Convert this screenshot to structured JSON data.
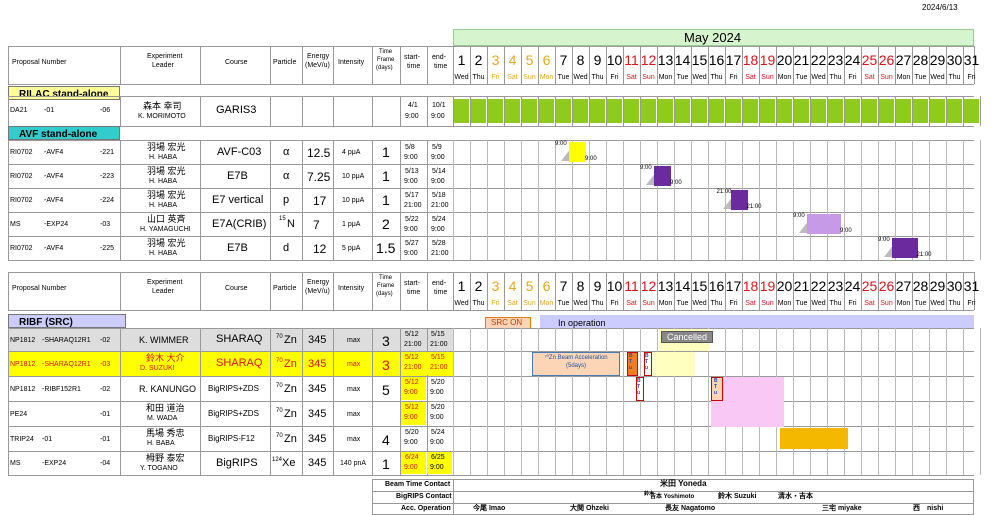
{
  "date": "2024/6/13",
  "month_title": "May 2024",
  "headers": {
    "proposal": "Proposal Number",
    "leader_1": "Experiment",
    "leader_2": "Leader",
    "course": "Course",
    "particle": "Particle",
    "energy_1": "Energy",
    "energy_2": "(MeV/u)",
    "intensity": "Intensity",
    "time_1": "Time",
    "time_2": "Frame",
    "time_3": "(days)",
    "start_1": "start-",
    "start_2": "time",
    "end_1": "end-",
    "end_2": "time"
  },
  "days": [
    "1",
    "2",
    "3",
    "4",
    "5",
    "6",
    "7",
    "8",
    "9",
    "10",
    "11",
    "12",
    "13",
    "14",
    "15",
    "16",
    "17",
    "18",
    "19",
    "20",
    "21",
    "22",
    "23",
    "24",
    "25",
    "26",
    "27",
    "28",
    "29",
    "30",
    "31"
  ],
  "weekdays": [
    "Wed",
    "Thu",
    "Fri",
    "Sat",
    "Sun",
    "Mon",
    "Tue",
    "Wed",
    "Thu",
    "Fri",
    "Sat",
    "Sun",
    "Mon",
    "Tue",
    "Wed",
    "Thu",
    "Fri",
    "Sat",
    "Sun",
    "Mon",
    "Tue",
    "Wed",
    "Thu",
    "Fri",
    "Sat",
    "Sun",
    "Mon",
    "Tue",
    "Wed",
    "Thu",
    "Fri"
  ],
  "colors": {
    "holiday": "#e6a817",
    "weekend": "#d9141b",
    "green": "#8fcb1d",
    "purple": "#6b2a9e",
    "light_purple": "#c79ae8",
    "yellow": "#ffff00",
    "orange": "#f4b800"
  },
  "sections": {
    "rilac": "RILAC stand-alone",
    "avf": "AVF stand-alone",
    "ribf": "RIBF (SRC)"
  },
  "rilac_rows": [
    {
      "id": "DA21",
      "a": "-01",
      "b": "-06",
      "leader_jp": "森本 幸司",
      "leader_en": "K. MORIMOTO",
      "course": "GARIS3",
      "start": "4/1",
      "start_t": "9:00",
      "end": "10/1",
      "end_t": "9:00"
    }
  ],
  "avf_rows": [
    {
      "id": "RI0702",
      "a": "-AVF4",
      "b": "-221",
      "leader_jp": "羽場 宏光",
      "leader_en": "H. HABA",
      "course": "AVF-C03",
      "particle": "α",
      "energy": "12.5",
      "intensity": "4 pμA",
      "days": "1",
      "start": "5/8",
      "start_t": "9:00",
      "end": "5/9",
      "end_t": "9:00",
      "l1": "9:00",
      "l2": "9:00"
    },
    {
      "id": "RI0702",
      "a": "-AVF4",
      "b": "-223",
      "leader_jp": "羽場 宏光",
      "leader_en": "H. HABA",
      "course": "E7B",
      "particle": "α",
      "energy": "7.25",
      "intensity": "10 pμA",
      "days": "1",
      "start": "5/13",
      "start_t": "9:00",
      "end": "5/14",
      "end_t": "9:00",
      "l1": "9:00",
      "l2": "9:00"
    },
    {
      "id": "RI0702",
      "a": "-AVF4",
      "b": "-224",
      "leader_jp": "羽場 宏光",
      "leader_en": "H. HABA",
      "course": "E7 vertical",
      "particle": "p",
      "energy": "17",
      "intensity": "10 pμA",
      "days": "1",
      "start": "5/17",
      "start_t": "21:00",
      "end": "5/18",
      "end_t": "21:00",
      "l1": "21:00",
      "l2": "21:00"
    },
    {
      "id": "MS",
      "a": "-EXP24",
      "b": "-03",
      "leader_jp": "山口 英斉",
      "leader_en": "H. YAMAGUCHI",
      "course": "E7A(CRIB)",
      "particle_sup": "15",
      "particle": "N",
      "energy": "7",
      "intensity": "1 pμA",
      "days": "2",
      "start": "5/22",
      "start_t": "9:00",
      "end": "5/24",
      "end_t": "9:00",
      "l1": "9:00",
      "l2": "9:00"
    },
    {
      "id": "RI0702",
      "a": "-AVF4",
      "b": "-225",
      "leader_jp": "羽場 宏光",
      "leader_en": "H. HABA",
      "course": "E7B",
      "particle": "d",
      "energy": "12",
      "intensity": "5 pμA",
      "days": "1.5",
      "start": "5/27",
      "start_t": "9:00",
      "end": "5/28",
      "end_t": "21:00",
      "l1": "9:00",
      "l2": "21:00"
    }
  ],
  "src_status": {
    "src_on": "SRC ON",
    "in_operation": "In operation",
    "cancelled": "Cancelled",
    "zn_beam": "⁷⁰Zn Beam Acceleration (5days)",
    "btu": [
      "B",
      "T",
      "u"
    ]
  },
  "ribf_rows": [
    {
      "id": "NP1812",
      "a": "-SHARAQ12R1",
      "b": "-02",
      "leader_jp": "",
      "leader_en": "K. WIMMER",
      "course": "SHARAQ",
      "sup": "70",
      "particle": "Zn",
      "energy": "345",
      "intensity": "max",
      "days": "3",
      "start": "5/12",
      "start_t": "21:00",
      "end": "5/15",
      "end_t": "21:00"
    },
    {
      "id": "NP1812",
      "a": "-SHARAQ12R1",
      "b": "-03",
      "leader_jp": "鈴木 大介",
      "leader_en": "D. SUZUKI",
      "course": "SHARAQ",
      "sup": "70",
      "particle": "Zn",
      "energy": "345",
      "intensity": "max",
      "days": "3",
      "start": "5/12",
      "start_t": "21:00",
      "end": "5/15",
      "end_t": "21:00"
    },
    {
      "id": "NP1812",
      "a": "-RIBF152R1",
      "b": "-02",
      "leader_jp": "",
      "leader_en": "R. KANUNGO",
      "course": "BigRIPS+ZDS",
      "sup": "70",
      "particle": "Zn",
      "energy": "345",
      "intensity": "max",
      "days": "5",
      "start": "5/12",
      "start_t": "9:00",
      "end": "5/20",
      "end_t": "9:00"
    },
    {
      "id": "PE24",
      "a": "",
      "b": "-01",
      "leader_jp": "和田 道治",
      "leader_en": "M. WADA",
      "course": "BigRIPS+ZDS",
      "sup": "70",
      "particle": "Zn",
      "energy": "345",
      "intensity": "max",
      "days": "",
      "start": "5/12",
      "start_t": "9:00",
      "end": "5/20",
      "end_t": "9:00"
    },
    {
      "id": "TRIP24",
      "a": "-01",
      "b": "-01",
      "leader_jp": "馬場 秀忠",
      "leader_en": "H. BABA",
      "course": "BigRIPS-F12",
      "sup": "70",
      "particle": "Zn",
      "energy": "345",
      "intensity": "max",
      "days": "4",
      "start": "5/20",
      "start_t": "9:00",
      "end": "5/24",
      "end_t": "9:00"
    },
    {
      "id": "MS",
      "a": "-EXP24",
      "b": "-04",
      "leader_jp": "栂野 泰宏",
      "leader_en": "Y. TOGANO",
      "course": "BigRIPS",
      "sup": "124",
      "particle": "Xe",
      "energy": "345",
      "intensity": "140 pnA",
      "days": "1",
      "start": "6/24",
      "start_t": "9:00",
      "end": "6/25",
      "end_t": "9:00"
    }
  ],
  "footer": {
    "beam_time_label": "Beam Time Contact",
    "beam_time_value": "米田 Yoneda",
    "bigrips_label": "BigRIPS Contact",
    "bigrips_values": [
      "鈴木",
      "吉本 Yoshimoto",
      "鈴木 Suzuki",
      "清水・吉本"
    ],
    "acc_label": "Acc. Operation",
    "acc_values": [
      "今尾 Imao",
      "大関 Ohzeki",
      "長友 Nagatomo",
      "三宅 miyake",
      "西　nishi"
    ]
  }
}
